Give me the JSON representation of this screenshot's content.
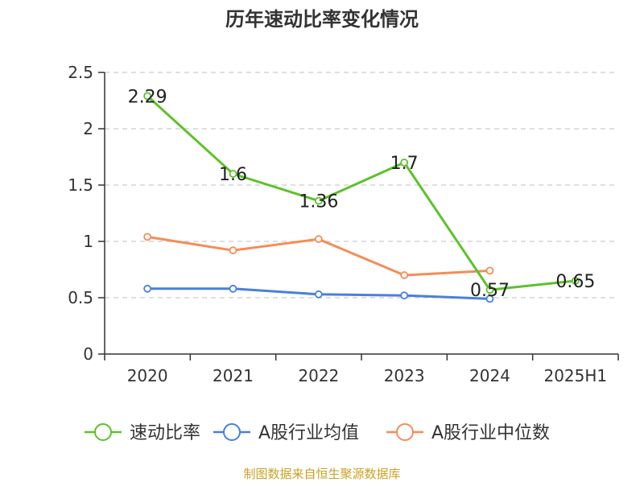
{
  "chart_data": {
    "type": "line",
    "title": "历年速动比率变化情况",
    "categories": [
      "2020",
      "2021",
      "2022",
      "2023",
      "2024",
      "2025H1"
    ],
    "ylim": [
      0,
      2.5
    ],
    "yticks": [
      0,
      0.5,
      1,
      1.5,
      2,
      2.5
    ],
    "ytick_labels": [
      "0",
      "0.5",
      "1",
      "1.5",
      "2",
      "2.5"
    ],
    "grid": true,
    "legend_position": "bottom",
    "series": [
      {
        "name": "速动比率",
        "color": "#5cc22a",
        "values": [
          2.29,
          1.6,
          1.36,
          1.7,
          0.57,
          0.65
        ],
        "labels": [
          "2.29",
          "1.6",
          "1.36",
          "1.7",
          "0.57",
          "0.65"
        ],
        "show_labels": true
      },
      {
        "name": "A股行业均值",
        "color": "#4a7fde",
        "values": [
          0.58,
          0.58,
          0.53,
          0.52,
          0.49,
          null
        ],
        "show_labels": false
      },
      {
        "name": "A股行业中位数",
        "color": "#f58c58",
        "values": [
          1.04,
          0.92,
          1.02,
          0.7,
          0.74,
          null
        ],
        "show_labels": false
      }
    ],
    "source": "制图数据来自恒生聚源数据库"
  },
  "colors": {
    "axis": "#333333",
    "grid": "#cccccc",
    "source_text": "#c9a227",
    "title": "#333333"
  }
}
